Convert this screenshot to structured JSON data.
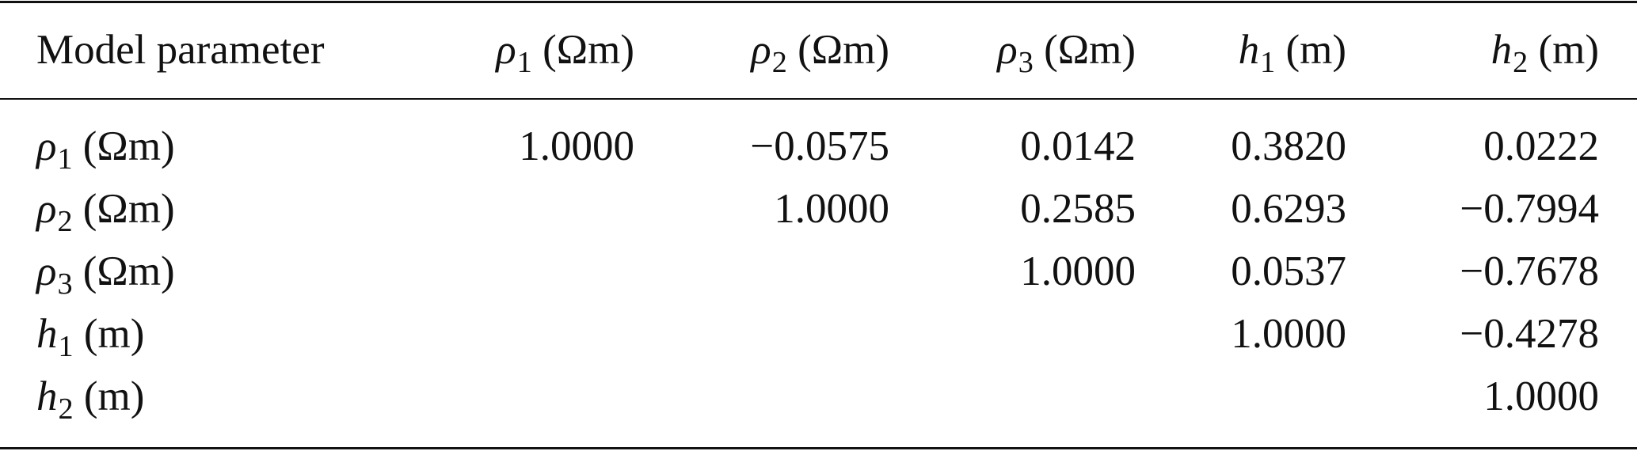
{
  "table": {
    "header": [
      "Model parameter",
      {
        "symbol": "ρ",
        "subscript": "1",
        "unit": "(Ωm)"
      },
      {
        "symbol": "ρ",
        "subscript": "2",
        "unit": "(Ωm)"
      },
      {
        "symbol": "ρ",
        "subscript": "3",
        "unit": "(Ωm)"
      },
      {
        "symbol": "h",
        "subscript": "1",
        "unit": "(m)"
      },
      {
        "symbol": "h",
        "subscript": "2",
        "unit": "(m)"
      }
    ],
    "rows": [
      {
        "label": {
          "symbol": "ρ",
          "subscript": "1",
          "unit": "(Ωm)"
        },
        "cells": [
          "1.0000",
          "−0.0575",
          "0.0142",
          "0.3820",
          "0.0222"
        ]
      },
      {
        "label": {
          "symbol": "ρ",
          "subscript": "2",
          "unit": "(Ωm)"
        },
        "cells": [
          null,
          "1.0000",
          "0.2585",
          "0.6293",
          "−0.7994"
        ]
      },
      {
        "label": {
          "symbol": "ρ",
          "subscript": "3",
          "unit": "(Ωm)"
        },
        "cells": [
          null,
          null,
          "1.0000",
          "0.0537",
          "−0.7678"
        ]
      },
      {
        "label": {
          "symbol": "h",
          "subscript": "1",
          "unit": "(m)"
        },
        "cells": [
          null,
          null,
          null,
          "1.0000",
          "−0.4278"
        ]
      },
      {
        "label": {
          "symbol": "h",
          "subscript": "2",
          "unit": "(m)"
        },
        "cells": [
          null,
          null,
          null,
          null,
          "1.0000"
        ]
      }
    ]
  }
}
